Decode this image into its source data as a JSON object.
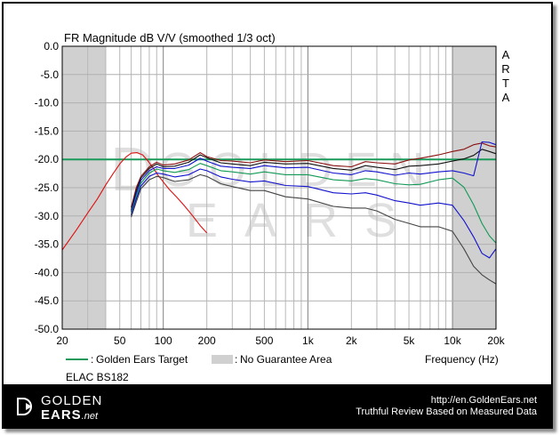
{
  "chart_data": {
    "type": "line",
    "title": "FR Magnitude dB V/V (smoothed 1/3 oct)",
    "watermark_label": "ARTA",
    "xlabel": "Frequency (Hz)",
    "x_scale": "log",
    "xlim": [
      20,
      20000
    ],
    "ylim": [
      -50,
      0
    ],
    "x_ticks": [
      20,
      50,
      100,
      200,
      500,
      1000,
      2000,
      5000,
      10000,
      20000
    ],
    "x_tick_labels": [
      "20",
      "50",
      "100",
      "200",
      "500",
      "1k",
      "2k",
      "5k",
      "10k",
      "20k"
    ],
    "y_ticks": [
      0,
      -5,
      -10,
      -15,
      -20,
      -25,
      -30,
      -35,
      -40,
      -45,
      -50
    ],
    "y_tick_labels": [
      "0.0",
      "-5.0",
      "-10.0",
      "-15.0",
      "-20.0",
      "-25.0",
      "-30.0",
      "-35.0",
      "-40.0",
      "-45.0",
      "-50.0"
    ],
    "grid": true,
    "no_guarantee_areas": [
      [
        20,
        40
      ],
      [
        10000,
        20000
      ]
    ],
    "legend": {
      "target_label": "Golden Ears Target",
      "area_label": "No Guarantee Area"
    },
    "subject_label": "ELAC BS182",
    "target_value": -20,
    "colors": {
      "target": "#1a9a5a",
      "area": "#d0d0d0",
      "near_field": "#dd1111",
      "series_red": "#8a1010",
      "series_black": "#111111",
      "series_blue": "#1111cc",
      "series_green": "#119955",
      "series_gray": "#444444"
    },
    "series": [
      {
        "color_key": "near_field",
        "x": [
          20,
          25,
          30,
          35,
          40,
          45,
          50,
          55,
          60,
          66,
          72,
          78,
          85,
          92,
          100,
          110,
          125,
          140,
          160,
          180,
          200
        ],
        "y": [
          -36,
          -32.5,
          -29.5,
          -27,
          -24.5,
          -22.5,
          -20.8,
          -19.6,
          -18.9,
          -18.8,
          -19.2,
          -20.2,
          -21.5,
          -22.8,
          -24,
          -25.3,
          -26.8,
          -28.2,
          -30,
          -31.7,
          -33
        ]
      },
      {
        "color_key": "series_red",
        "x": [
          60,
          65,
          70,
          80,
          90,
          100,
          120,
          150,
          180,
          200,
          250,
          300,
          400,
          500,
          700,
          1000,
          1500,
          2000,
          2500,
          3000,
          4000,
          5000,
          6000,
          8000,
          10000,
          12000,
          14000,
          16000,
          18000,
          20000
        ],
        "y": [
          -28.5,
          -25,
          -23,
          -21.3,
          -20.5,
          -21,
          -20.8,
          -20.1,
          -18.8,
          -19.5,
          -20.2,
          -20.3,
          -20.6,
          -20.1,
          -20.4,
          -20.2,
          -21.1,
          -21.3,
          -20.4,
          -20.6,
          -20.8,
          -20.1,
          -19.8,
          -19.2,
          -18.6,
          -18.2,
          -17.4,
          -17.1,
          -17.6,
          -17.8
        ]
      },
      {
        "color_key": "series_black",
        "x": [
          60,
          65,
          70,
          80,
          90,
          100,
          120,
          150,
          180,
          200,
          250,
          300,
          400,
          500,
          700,
          1000,
          1500,
          2000,
          2500,
          3000,
          4000,
          5000,
          6000,
          8000,
          10000,
          12000,
          14000,
          16000,
          18000,
          20000
        ],
        "y": [
          -29,
          -25.5,
          -23.3,
          -21.6,
          -20.8,
          -21.3,
          -21.2,
          -20.5,
          -19.2,
          -19.7,
          -20.6,
          -20.8,
          -21.1,
          -20.5,
          -20.8,
          -20.7,
          -21.6,
          -21.9,
          -21.1,
          -21.4,
          -21.8,
          -21.2,
          -21.1,
          -20.8,
          -20.3,
          -19.9,
          -19.3,
          -18.2,
          -18.6,
          -19
        ]
      },
      {
        "color_key": "series_blue",
        "x": [
          60,
          65,
          70,
          80,
          90,
          100,
          120,
          150,
          180,
          200,
          250,
          300,
          400,
          500,
          700,
          1000,
          1500,
          2000,
          2500,
          3000,
          4000,
          5000,
          6000,
          8000,
          10000,
          12000,
          14000,
          16000,
          18000,
          20000
        ],
        "y": [
          -29.3,
          -26,
          -23.7,
          -22,
          -21.3,
          -21.6,
          -21.6,
          -21,
          -19.8,
          -20.3,
          -21.2,
          -21.4,
          -21.6,
          -21.1,
          -21.5,
          -21.4,
          -22.4,
          -22.7,
          -22,
          -22.2,
          -22.8,
          -22.4,
          -22.6,
          -22.2,
          -22,
          -22.4,
          -22.9,
          -16.9,
          -17,
          -17.4
        ]
      },
      {
        "color_key": "series_green",
        "x": [
          60,
          65,
          70,
          80,
          90,
          100,
          120,
          150,
          180,
          200,
          250,
          300,
          400,
          500,
          700,
          1000,
          1500,
          2000,
          2500,
          3000,
          4000,
          5000,
          6000,
          8000,
          10000,
          12000,
          14000,
          16000,
          18000,
          20000
        ],
        "y": [
          -29.6,
          -26.5,
          -24.2,
          -22.4,
          -21.7,
          -22,
          -22.3,
          -21.8,
          -20.7,
          -21.1,
          -22,
          -22.2,
          -22.6,
          -22.2,
          -22.7,
          -22.7,
          -23.6,
          -23.8,
          -23.4,
          -23.6,
          -24.3,
          -24.5,
          -24.4,
          -23.6,
          -23.3,
          -24.9,
          -28,
          -31.3,
          -33.5,
          -34.8
        ]
      },
      {
        "color_key": "series_blue",
        "x": [
          60,
          65,
          70,
          80,
          90,
          100,
          120,
          150,
          180,
          200,
          250,
          300,
          400,
          500,
          700,
          1000,
          1500,
          2000,
          2500,
          3000,
          4000,
          5000,
          6000,
          8000,
          10000,
          12000,
          14000,
          16000,
          18000,
          20000
        ],
        "y": [
          -29.9,
          -27,
          -24.7,
          -23,
          -22.4,
          -22.6,
          -23.1,
          -22.7,
          -21.7,
          -22,
          -23.1,
          -23.5,
          -24,
          -23.8,
          -24.6,
          -24.8,
          -25.9,
          -26.1,
          -25.9,
          -26.3,
          -27.3,
          -27.7,
          -28.1,
          -27.7,
          -28.1,
          -30.8,
          -33.7,
          -36.6,
          -37.4,
          -35.8
        ]
      },
      {
        "color_key": "series_gray",
        "x": [
          60,
          65,
          70,
          80,
          90,
          100,
          120,
          150,
          180,
          200,
          250,
          300,
          400,
          500,
          700,
          1000,
          1500,
          2000,
          2500,
          3000,
          4000,
          5000,
          6000,
          8000,
          10000,
          12000,
          14000,
          16000,
          18000,
          20000
        ],
        "y": [
          -30.2,
          -27.5,
          -25.2,
          -23.6,
          -23,
          -23.2,
          -23.9,
          -23.6,
          -22.7,
          -23,
          -24.3,
          -24.8,
          -25.5,
          -25.5,
          -26.6,
          -27,
          -28.3,
          -28.6,
          -28.6,
          -29.1,
          -30.6,
          -31.3,
          -31.9,
          -31.9,
          -32.7,
          -35.8,
          -38.9,
          -40.4,
          -41.3,
          -42
        ]
      }
    ]
  },
  "footer": {
    "logo_line1": "GOLDEN",
    "logo_line2": "EARS",
    "logo_suffix": ".net",
    "url": "http://en.GoldenEars.net",
    "tagline": "Truthful Review Based on Measured Data"
  }
}
